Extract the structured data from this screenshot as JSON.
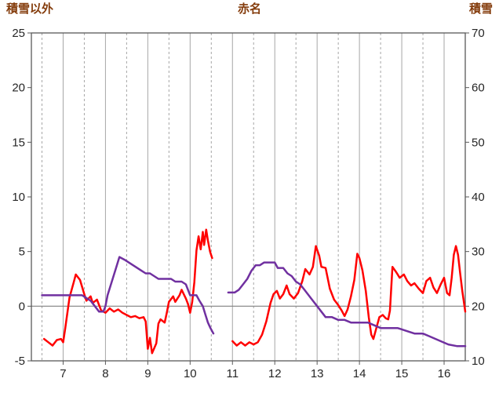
{
  "colors": {
    "header_text": "#843C0C",
    "background": "#FFFFFF"
  },
  "chart_data": {
    "type": "line",
    "title": "赤名",
    "left_axis": {
      "label": "積雪以外",
      "min": -5,
      "max": 25,
      "ticks": [
        25,
        20,
        15,
        10,
        5,
        0,
        -5
      ]
    },
    "right_axis": {
      "label": "積雪",
      "min": 10,
      "max": 70,
      "ticks": [
        70,
        60,
        50,
        40,
        30,
        20,
        10
      ]
    },
    "x_axis": {
      "min": 6.25,
      "max": 16.5,
      "ticks": [
        7,
        8,
        9,
        10,
        11,
        12,
        13,
        14,
        15,
        16
      ],
      "minor_gridlines": [
        6.5,
        7.5,
        8.5,
        9.5,
        10.5,
        11.5,
        12.5,
        13.5,
        14.5,
        15.5
      ]
    },
    "grid": {
      "major_color": "#A6A6A6",
      "minor_color": "#A6A6A6",
      "frame_color": "#595959",
      "zero_line_color": "#808080",
      "tick_text_color": "#262626"
    },
    "series": [
      {
        "id": "red-line",
        "color": "#FF0000",
        "axis": "left",
        "width": 2.5,
        "segments": [
          [
            [
              6.55,
              -3.0
            ],
            [
              6.65,
              -3.3
            ],
            [
              6.75,
              -3.6
            ],
            [
              6.85,
              -3.1
            ],
            [
              6.95,
              -3.0
            ],
            [
              7.0,
              -3.3
            ],
            [
              7.05,
              -2.0
            ],
            [
              7.15,
              0.8
            ],
            [
              7.25,
              2.2
            ],
            [
              7.3,
              2.9
            ],
            [
              7.4,
              2.4
            ],
            [
              7.5,
              1.1
            ],
            [
              7.55,
              0.5
            ],
            [
              7.65,
              0.9
            ],
            [
              7.7,
              0.3
            ],
            [
              7.8,
              0.6
            ],
            [
              7.9,
              -0.4
            ],
            [
              8.0,
              -0.6
            ],
            [
              8.1,
              -0.2
            ],
            [
              8.2,
              -0.5
            ],
            [
              8.3,
              -0.3
            ],
            [
              8.4,
              -0.6
            ],
            [
              8.5,
              -0.8
            ],
            [
              8.6,
              -1.0
            ],
            [
              8.7,
              -0.9
            ],
            [
              8.8,
              -1.1
            ],
            [
              8.9,
              -1.0
            ],
            [
              8.95,
              -1.4
            ],
            [
              9.0,
              -3.9
            ],
            [
              9.05,
              -2.9
            ],
            [
              9.1,
              -4.3
            ],
            [
              9.2,
              -3.4
            ],
            [
              9.25,
              -1.6
            ],
            [
              9.3,
              -1.2
            ],
            [
              9.4,
              -1.5
            ],
            [
              9.45,
              -0.6
            ],
            [
              9.5,
              0.4
            ],
            [
              9.6,
              0.9
            ],
            [
              9.65,
              0.4
            ],
            [
              9.75,
              1.0
            ],
            [
              9.8,
              1.5
            ],
            [
              9.9,
              0.7
            ],
            [
              9.95,
              0.2
            ],
            [
              10.0,
              -0.6
            ],
            [
              10.05,
              0.4
            ],
            [
              10.1,
              2.2
            ],
            [
              10.15,
              5.1
            ],
            [
              10.2,
              6.4
            ],
            [
              10.25,
              5.2
            ],
            [
              10.3,
              6.8
            ],
            [
              10.33,
              5.6
            ],
            [
              10.38,
              7.0
            ],
            [
              10.42,
              6.0
            ],
            [
              10.47,
              5.0
            ],
            [
              10.52,
              4.4
            ]
          ],
          [
            [
              11.0,
              -3.2
            ],
            [
              11.1,
              -3.6
            ],
            [
              11.2,
              -3.3
            ],
            [
              11.3,
              -3.6
            ],
            [
              11.4,
              -3.3
            ],
            [
              11.5,
              -3.5
            ],
            [
              11.6,
              -3.3
            ],
            [
              11.7,
              -2.6
            ],
            [
              11.8,
              -1.4
            ],
            [
              11.9,
              0.3
            ],
            [
              11.97,
              1.1
            ],
            [
              12.05,
              1.4
            ],
            [
              12.12,
              0.7
            ],
            [
              12.2,
              1.1
            ],
            [
              12.28,
              1.9
            ],
            [
              12.35,
              1.1
            ],
            [
              12.45,
              0.7
            ],
            [
              12.55,
              1.2
            ],
            [
              12.65,
              2.3
            ],
            [
              12.72,
              3.4
            ],
            [
              12.82,
              2.9
            ],
            [
              12.9,
              3.6
            ],
            [
              12.97,
              5.5
            ],
            [
              13.05,
              4.6
            ],
            [
              13.1,
              3.6
            ],
            [
              13.2,
              3.5
            ],
            [
              13.3,
              1.6
            ],
            [
              13.4,
              0.6
            ],
            [
              13.5,
              0.1
            ],
            [
              13.58,
              -0.4
            ],
            [
              13.65,
              -0.9
            ],
            [
              13.72,
              -0.3
            ],
            [
              13.8,
              0.9
            ],
            [
              13.88,
              2.4
            ],
            [
              13.95,
              4.8
            ],
            [
              14.0,
              4.4
            ],
            [
              14.07,
              3.3
            ],
            [
              14.15,
              1.4
            ],
            [
              14.22,
              -1.0
            ],
            [
              14.28,
              -2.6
            ],
            [
              14.33,
              -3.0
            ],
            [
              14.4,
              -2.0
            ],
            [
              14.47,
              -1.0
            ],
            [
              14.55,
              -0.8
            ],
            [
              14.62,
              -1.1
            ],
            [
              14.68,
              -1.2
            ],
            [
              14.72,
              -0.4
            ],
            [
              14.78,
              3.6
            ],
            [
              14.87,
              3.1
            ],
            [
              14.95,
              2.6
            ],
            [
              15.05,
              2.9
            ],
            [
              15.13,
              2.3
            ],
            [
              15.22,
              1.9
            ],
            [
              15.3,
              2.1
            ],
            [
              15.4,
              1.6
            ],
            [
              15.5,
              1.2
            ],
            [
              15.58,
              2.3
            ],
            [
              15.67,
              2.6
            ],
            [
              15.75,
              1.7
            ],
            [
              15.83,
              1.2
            ],
            [
              15.92,
              2.0
            ],
            [
              16.0,
              2.6
            ],
            [
              16.07,
              1.2
            ],
            [
              16.13,
              1.0
            ],
            [
              16.18,
              2.6
            ],
            [
              16.23,
              4.7
            ],
            [
              16.28,
              5.5
            ],
            [
              16.33,
              4.7
            ],
            [
              16.38,
              3.0
            ],
            [
              16.43,
              1.4
            ],
            [
              16.5,
              -0.5
            ]
          ]
        ]
      },
      {
        "id": "purple-line",
        "color": "#7030A0",
        "axis": "right",
        "width": 2.5,
        "segments": [
          [
            [
              6.5,
              22
            ],
            [
              7.45,
              22
            ],
            [
              7.55,
              21.5
            ],
            [
              7.65,
              21
            ],
            [
              7.75,
              20
            ],
            [
              7.85,
              19
            ],
            [
              7.95,
              19
            ],
            [
              8.0,
              20
            ],
            [
              8.05,
              22
            ],
            [
              8.15,
              24.5
            ],
            [
              8.25,
              27
            ],
            [
              8.33,
              29
            ],
            [
              8.45,
              28.5
            ],
            [
              8.55,
              28
            ],
            [
              8.65,
              27.5
            ],
            [
              8.75,
              27
            ],
            [
              8.85,
              26.5
            ],
            [
              8.95,
              26
            ],
            [
              9.05,
              26
            ],
            [
              9.15,
              25.5
            ],
            [
              9.25,
              25
            ],
            [
              9.4,
              25
            ],
            [
              9.55,
              25
            ],
            [
              9.65,
              24.5
            ],
            [
              9.8,
              24.5
            ],
            [
              9.9,
              24
            ],
            [
              10.0,
              22
            ],
            [
              10.15,
              22
            ],
            [
              10.22,
              21
            ],
            [
              10.3,
              20
            ],
            [
              10.36,
              18.5
            ],
            [
              10.42,
              17
            ],
            [
              10.48,
              16
            ],
            [
              10.55,
              15
            ]
          ],
          [
            [
              10.9,
              22.5
            ],
            [
              11.05,
              22.5
            ],
            [
              11.15,
              23
            ],
            [
              11.25,
              24
            ],
            [
              11.35,
              25
            ],
            [
              11.45,
              26.5
            ],
            [
              11.55,
              27.5
            ],
            [
              11.65,
              27.5
            ],
            [
              11.75,
              28
            ],
            [
              11.9,
              28
            ],
            [
              12.0,
              28
            ],
            [
              12.07,
              27
            ],
            [
              12.2,
              27
            ],
            [
              12.3,
              26
            ],
            [
              12.4,
              25.5
            ],
            [
              12.5,
              24.5
            ],
            [
              12.6,
              24
            ],
            [
              12.7,
              23
            ],
            [
              12.8,
              22
            ],
            [
              12.9,
              21
            ],
            [
              13.0,
              20
            ],
            [
              13.1,
              19
            ],
            [
              13.2,
              18
            ],
            [
              13.35,
              18
            ],
            [
              13.5,
              17.5
            ],
            [
              13.65,
              17.5
            ],
            [
              13.8,
              17
            ],
            [
              14.0,
              17
            ],
            [
              14.2,
              17
            ],
            [
              14.35,
              16.5
            ],
            [
              14.5,
              16
            ],
            [
              14.7,
              16
            ],
            [
              14.9,
              16
            ],
            [
              15.1,
              15.5
            ],
            [
              15.3,
              15
            ],
            [
              15.5,
              15
            ],
            [
              15.65,
              14.5
            ],
            [
              15.8,
              14
            ],
            [
              15.95,
              13.5
            ],
            [
              16.1,
              13
            ],
            [
              16.3,
              12.7
            ],
            [
              16.5,
              12.7
            ]
          ]
        ]
      }
    ]
  }
}
